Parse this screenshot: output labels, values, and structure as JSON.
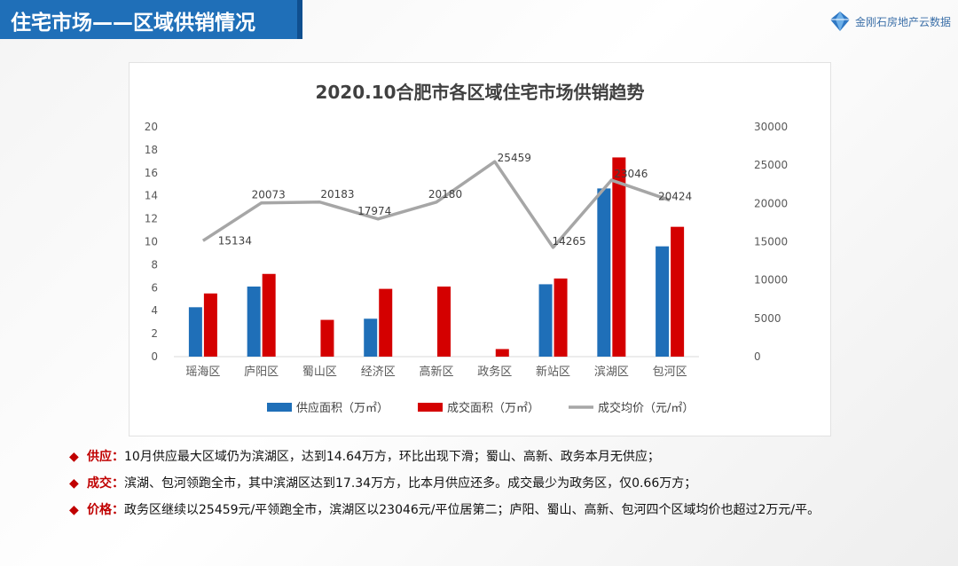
{
  "header": {
    "title": "住宅市场——区域供销情况",
    "logo_text": "金刚石房地产云数据"
  },
  "chart_data": {
    "type": "bar",
    "title": "2020.10合肥市各区域住宅市场供销趋势",
    "categories": [
      "瑶海区",
      "庐阳区",
      "蜀山区",
      "经济区",
      "高新区",
      "政务区",
      "新站区",
      "滨湖区",
      "包河区"
    ],
    "series": [
      {
        "name": "供应面积（万㎡）",
        "type": "bar",
        "axis": "left",
        "color": "#1f6fb8",
        "values": [
          4.3,
          6.1,
          0,
          3.3,
          0,
          0,
          6.3,
          14.64,
          9.6
        ]
      },
      {
        "name": "成交面积（万㎡）",
        "type": "bar",
        "axis": "left",
        "color": "#d40000",
        "values": [
          5.5,
          7.2,
          3.2,
          5.9,
          6.1,
          0.66,
          6.8,
          17.34,
          11.3
        ]
      },
      {
        "name": "成交均价（元/㎡）",
        "type": "line",
        "axis": "right",
        "color": "#a6a6a6",
        "values": [
          15134,
          20073,
          20183,
          17974,
          20180,
          25459,
          14265,
          23046,
          20424
        ],
        "labels": [
          "15134",
          "20073",
          "20183",
          "17974",
          "20180",
          "25459",
          "14265",
          "23046",
          "20424"
        ]
      }
    ],
    "y_left": {
      "range": [
        0,
        20
      ],
      "ticks": [
        "0",
        "2",
        "4",
        "6",
        "8",
        "10",
        "12",
        "14",
        "16",
        "18",
        "20"
      ]
    },
    "y_right": {
      "range": [
        0,
        30000
      ],
      "ticks": [
        "0",
        "5000",
        "10000",
        "15000",
        "20000",
        "25000",
        "30000"
      ]
    },
    "legend_position": "bottom",
    "grid": false
  },
  "notes": [
    {
      "bullet": "◆",
      "label": "供应：",
      "text": "10月供应最大区域仍为滨湖区，达到14.64万方，环比出现下滑；蜀山、高新、政务本月无供应；"
    },
    {
      "bullet": "◆",
      "label": "成交：",
      "text": "滨湖、包河领跑全市，其中滨湖区达到17.34万方，比本月供应还多。成交最少为政务区，仅0.66万方；"
    },
    {
      "bullet": "◆",
      "label": "价格：",
      "text": "政务区继续以25459元/平领跑全市，滨湖区以23046元/平位居第二；庐阳、蜀山、高新、包河四个区域均价也超过2万元/平。"
    }
  ]
}
